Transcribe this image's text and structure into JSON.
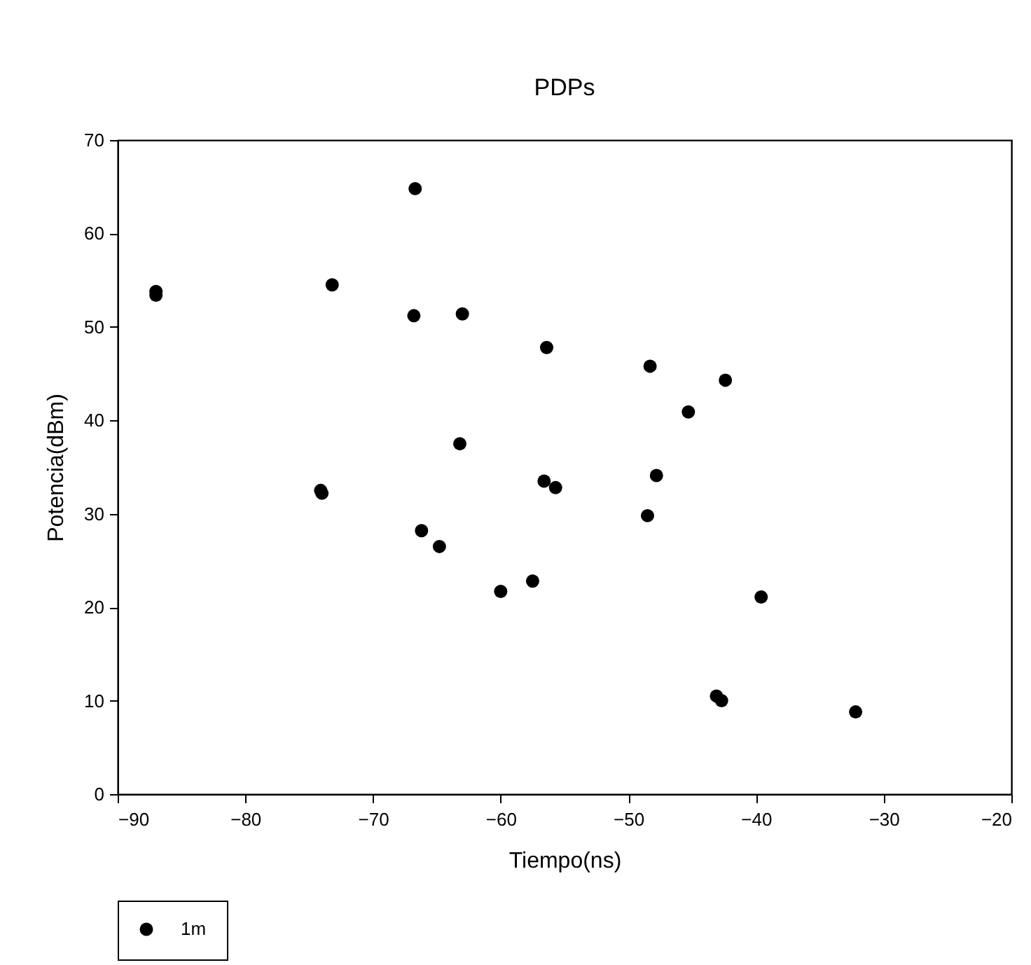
{
  "chart_data": {
    "type": "scatter",
    "title": "PDPs",
    "xlabel": "Tiempo(ns)",
    "ylabel": "Potencia(dBm)",
    "xlim": [
      -90,
      -20
    ],
    "xticks": [
      -90,
      -80,
      -70,
      -60,
      -50,
      -40,
      -30,
      -20
    ],
    "ylim": [
      0,
      70
    ],
    "yticks": [
      0,
      10,
      20,
      30,
      40,
      50,
      60,
      70
    ],
    "grid": false,
    "legend": "bottom left",
    "marker": "circle",
    "series": [
      {
        "name": "1m",
        "color": "#000000",
        "x": [
          -87,
          -87,
          -73.2,
          -66.7,
          -66.8,
          -63,
          -56.4,
          -48.3,
          -42.4,
          -45.3,
          -63.2,
          -47.8,
          -56.6,
          -55.7,
          -48.5,
          -74.1,
          -74,
          -66.2,
          -64.8,
          -60,
          -57.5,
          -39.6,
          -43.1,
          -42.7,
          -32.2
        ],
        "values": [
          53.8,
          53.4,
          54.5,
          64.8,
          51.2,
          51.4,
          47.8,
          45.8,
          44.3,
          40.9,
          37.5,
          34.1,
          33.5,
          32.8,
          29.8,
          32.5,
          32.2,
          28.2,
          26.5,
          21.7,
          22.8,
          21.1,
          10.5,
          10,
          8.8
        ]
      }
    ]
  }
}
